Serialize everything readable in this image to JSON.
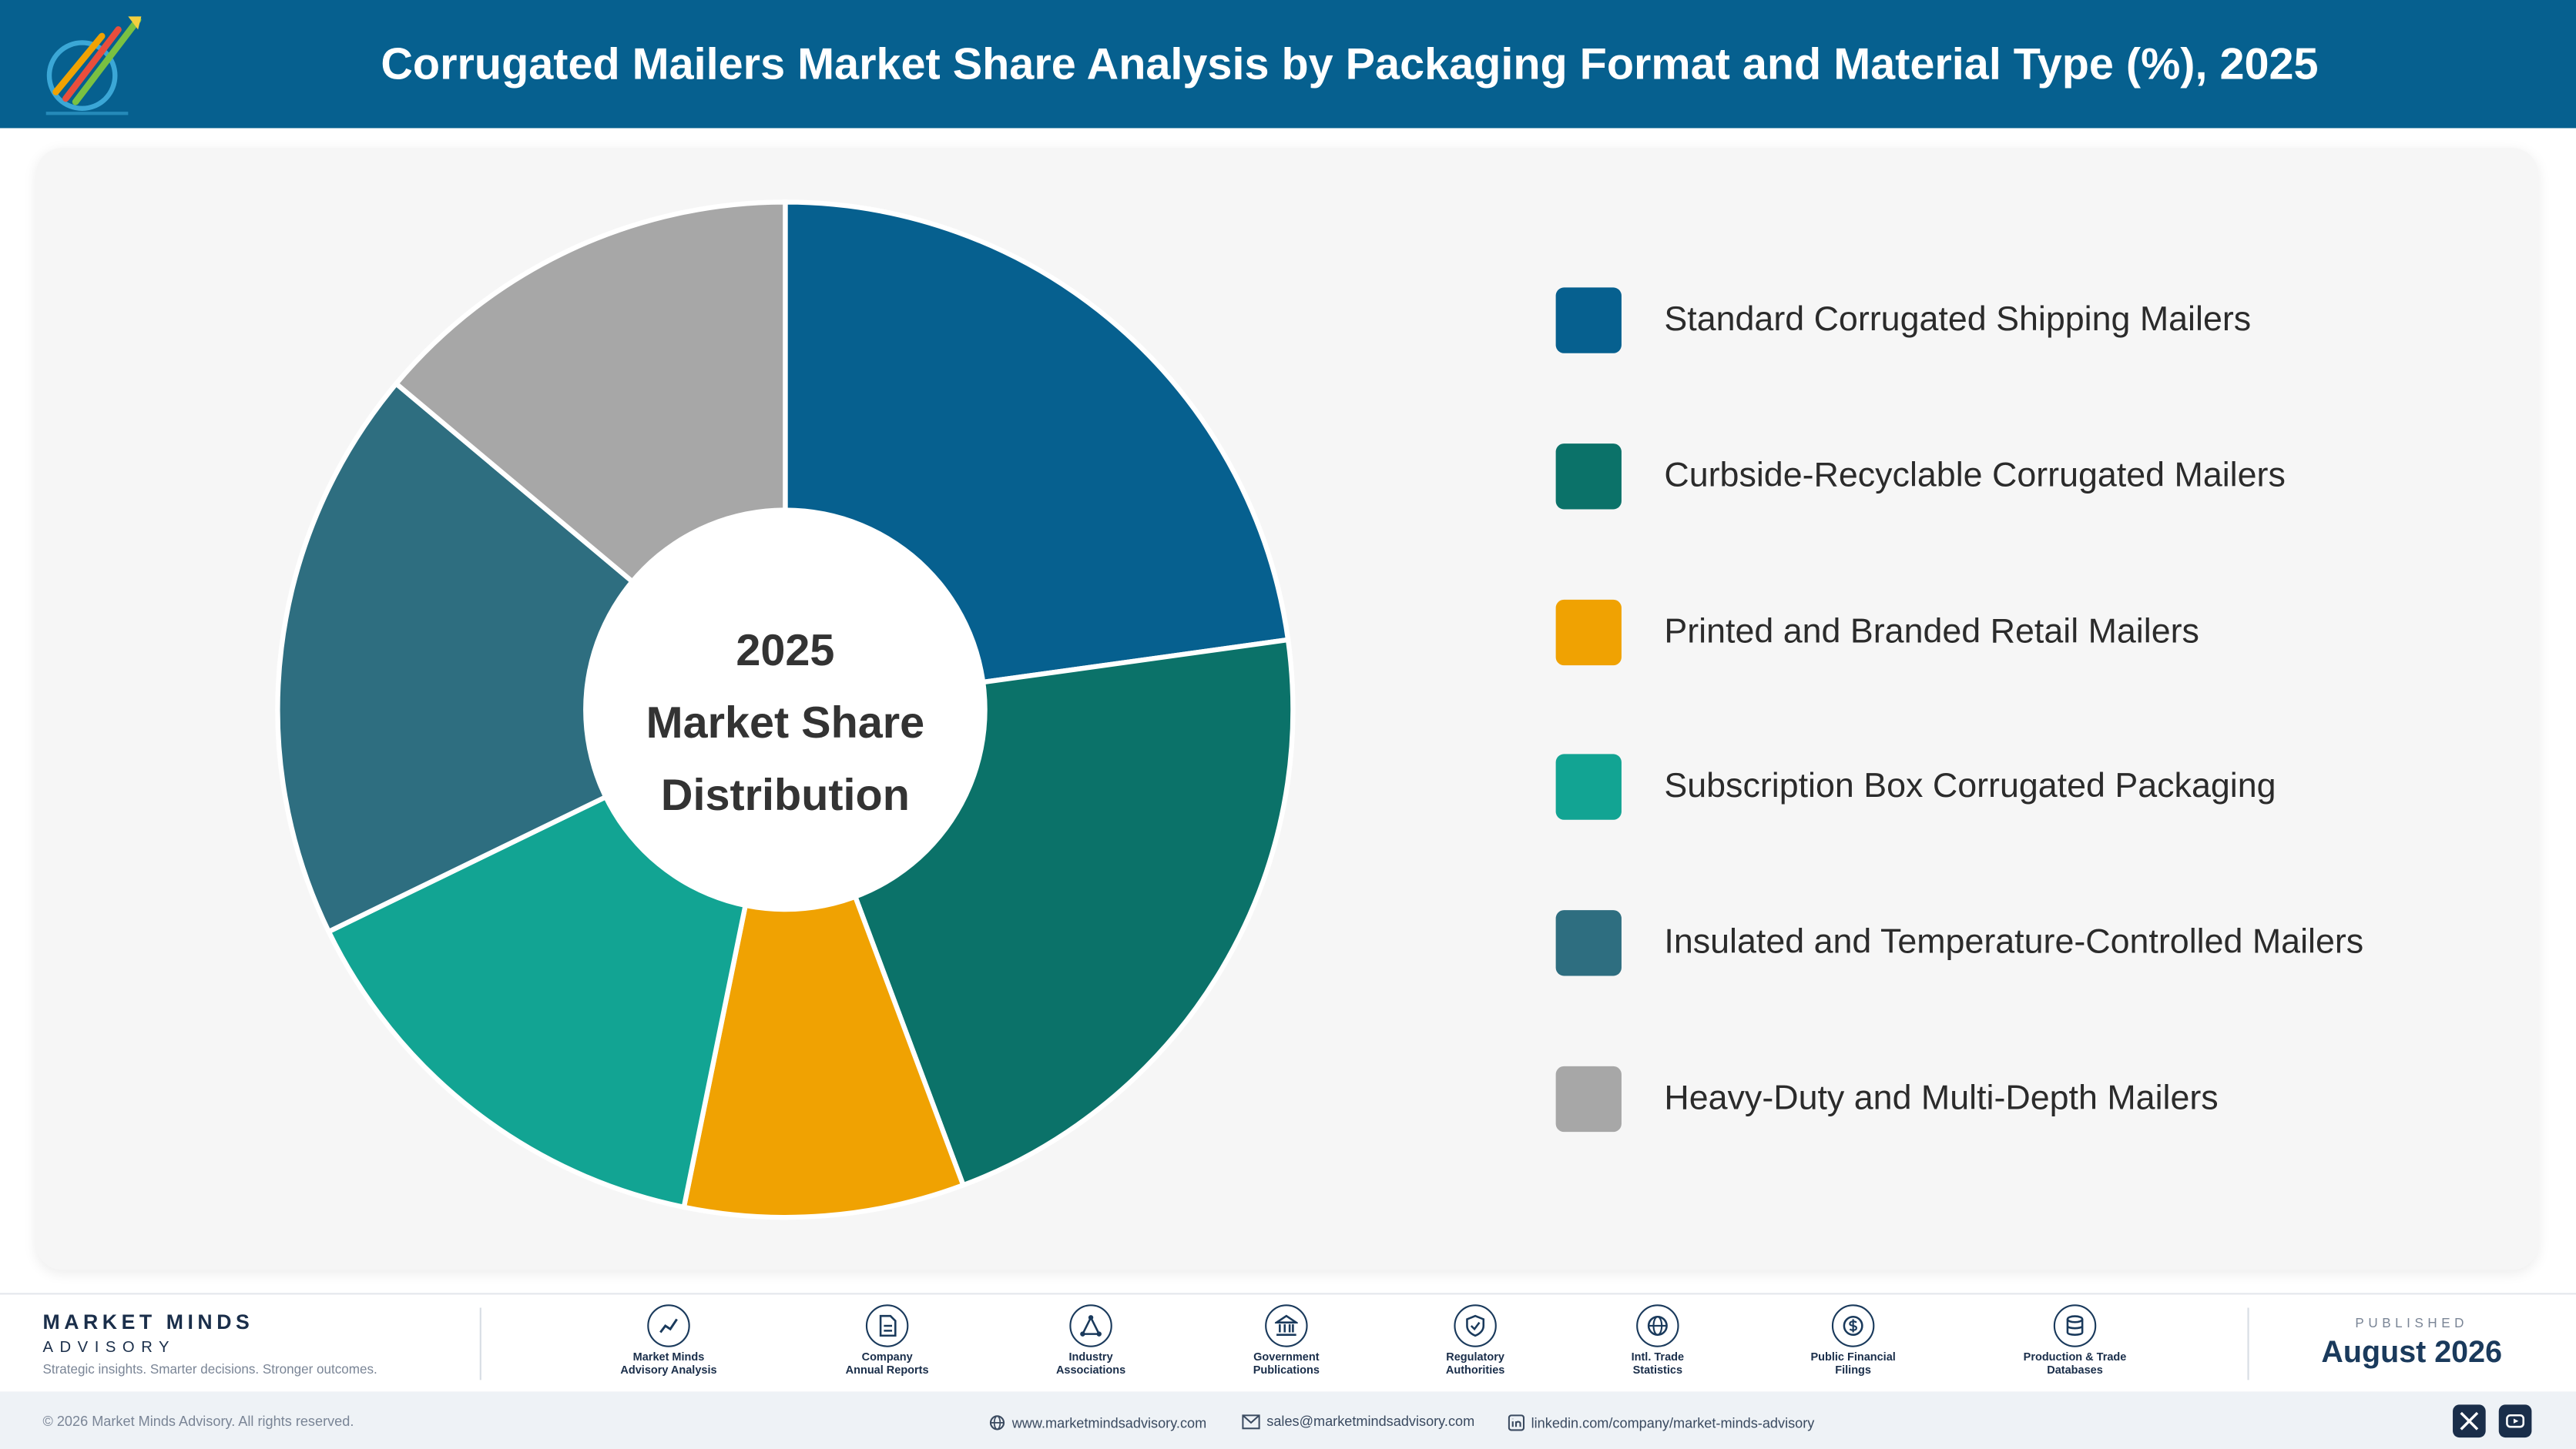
{
  "header": {
    "title": "Corrugated Mailers Market Share Analysis by Packaging Format and Material Type (%), 2025",
    "logo_icon": "market-minds-logo"
  },
  "chart_data": {
    "type": "pie",
    "style": "donut",
    "center_text": [
      "2025",
      "Market Share",
      "Distribution"
    ],
    "categories": [
      "Standard Corrugated Shipping Mailers",
      "Curbside-Recyclable Corrugated Mailers",
      "Printed and Branded Retail Mailers",
      "Subscription Box Corrugated Packaging",
      "Insulated and Temperature-Controlled Mailers",
      "Heavy-Duty and Multi-Depth Mailers"
    ],
    "values": [
      22.8,
      21.5,
      8.9,
      14.6,
      18.3,
      13.9
    ],
    "colors": [
      "#06608f",
      "#0b7269",
      "#f0a202",
      "#12a493",
      "#2e6e80",
      "#a7a7a7"
    ],
    "legend_position": "right"
  },
  "footer": {
    "brand_name": "MARKET MINDS",
    "brand_sub": "ADVISORY",
    "brand_tagline": "Strategic insights. Smarter decisions. Stronger outcomes.",
    "sources": [
      {
        "line1": "Market Minds",
        "line2": "Advisory Analysis",
        "icon": "chart-line-icon"
      },
      {
        "line1": "Company",
        "line2": "Annual Reports",
        "icon": "document-icon"
      },
      {
        "line1": "Industry",
        "line2": "Associations",
        "icon": "network-icon"
      },
      {
        "line1": "Government",
        "line2": "Publications",
        "icon": "building-icon"
      },
      {
        "line1": "Regulatory",
        "line2": "Authorities",
        "icon": "shield-icon"
      },
      {
        "line1": "Intl. Trade",
        "line2": "Statistics",
        "icon": "globe-icon"
      },
      {
        "line1": "Public Financial",
        "line2": "Filings",
        "icon": "coin-icon"
      },
      {
        "line1": "Production & Trade",
        "line2": "Databases",
        "icon": "database-icon"
      }
    ],
    "published_label": "PUBLISHED",
    "published_date": "August 2026"
  },
  "bottom_bar": {
    "copyright": "© 2026 Market Minds Advisory. All rights reserved.",
    "website": "www.marketmindsadvisory.com",
    "email": "sales@marketmindsadvisory.com",
    "linkedin": "linkedin.com/company/market-minds-advisory",
    "social_icons": [
      "x-icon",
      "youtube-icon"
    ]
  }
}
